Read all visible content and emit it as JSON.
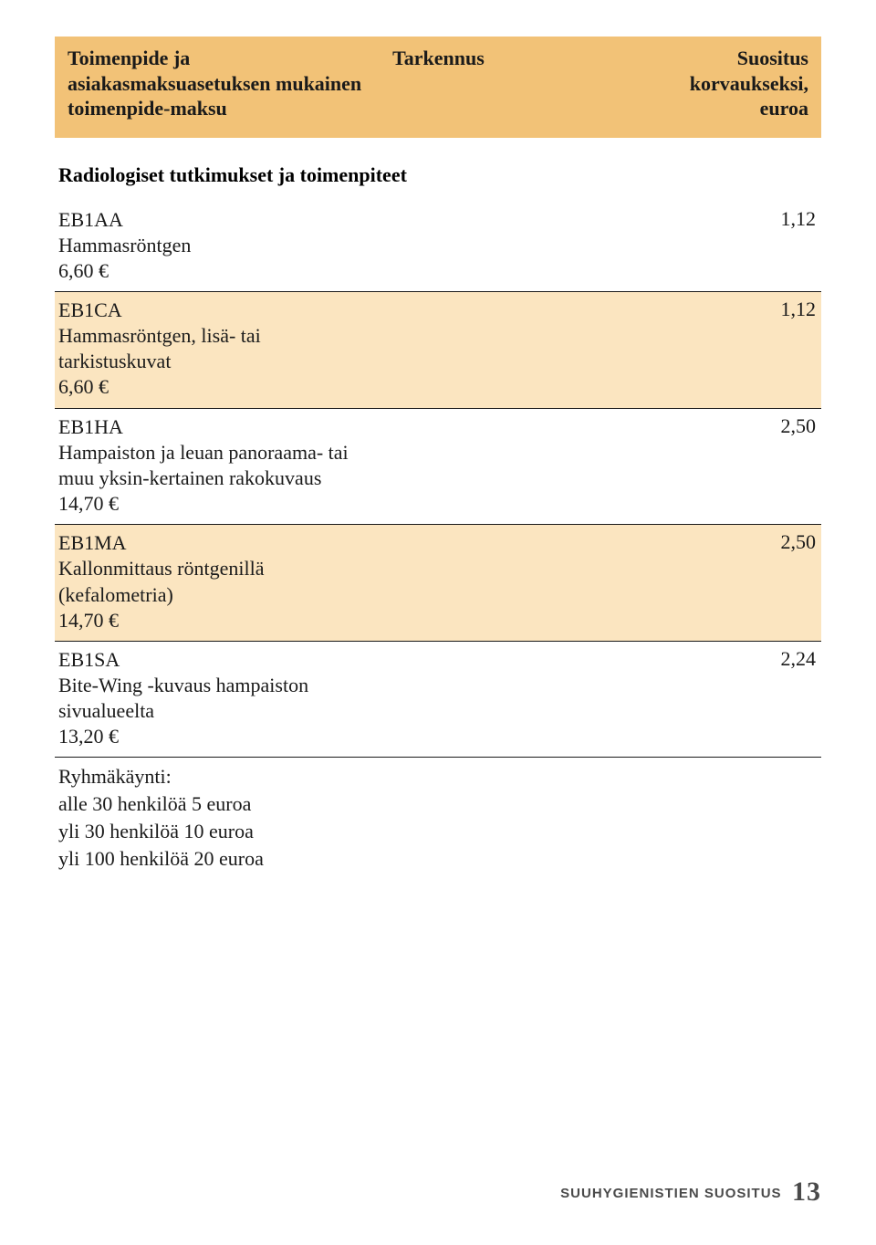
{
  "header": {
    "col1": "Toimenpide ja asiakasmaksuasetuksen mukainen toimenpide-maksu",
    "col2": "Tarkennus",
    "col3": "Suositus korvaukseksi, euroa"
  },
  "section_title": "Radiologiset tutkimukset ja toimenpiteet",
  "rows": [
    {
      "code": "EB1AA",
      "desc": "Hammasröntgen",
      "price_line": "6,60 €",
      "value": "1,12",
      "alt": false
    },
    {
      "code": "EB1CA",
      "desc": "Hammasröntgen, lisä- tai tarkistuskuvat",
      "price_line": "6,60 €",
      "value": "1,12",
      "alt": true
    },
    {
      "code": "EB1HA",
      "desc": "Hampaiston ja leuan panoraama- tai muu yksin-kertainen rakokuvaus",
      "price_line": "14,70 €",
      "value": "2,50",
      "alt": false
    },
    {
      "code": "EB1MA",
      "desc": "Kallonmittaus röntgenillä (kefalometria)",
      "price_line": "14,70 €",
      "value": "2,50",
      "alt": true
    },
    {
      "code": "EB1SA",
      "desc": "Bite-Wing -kuvaus hampaiston sivualueelta",
      "price_line": "13,20 €",
      "value": "2,24",
      "alt": false
    }
  ],
  "ryhma": {
    "title": "Ryhmäkäynti:",
    "line1": "alle 30 henkilöä 5 euroa",
    "line2": "yli 30 henkilöä 10 euroa",
    "line3": "yli 100 henkilöä 20 euroa"
  },
  "footer": {
    "text": "SUUHYGIENISTIEN SUOSITUS",
    "page": "13"
  },
  "colors": {
    "header_bg": "#f2c277",
    "alt_bg": "#fbe5c0",
    "border": "#1a1a1a",
    "text": "#1a1a1a",
    "footer_text": "#4a4a4a"
  }
}
